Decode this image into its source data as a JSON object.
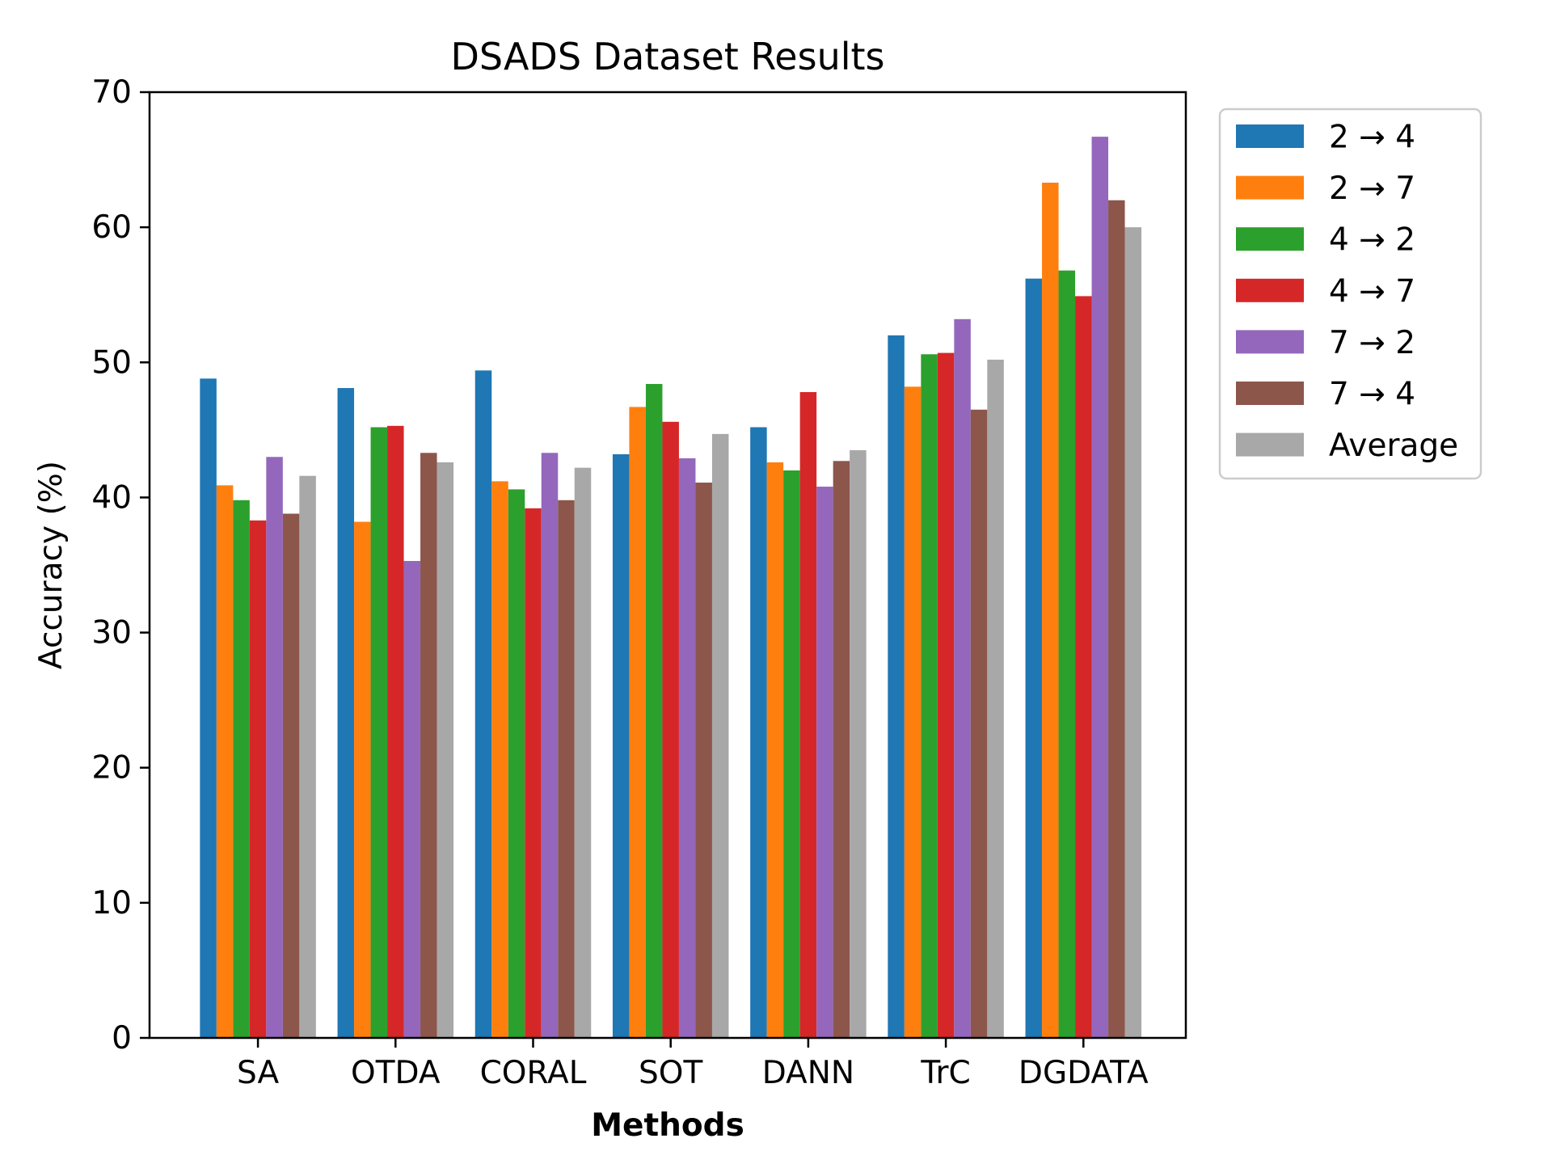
{
  "chart_data": {
    "type": "bar",
    "title": "DSADS Dataset Results",
    "xlabel": "Methods",
    "ylabel": "Accuracy (%)",
    "ylim": [
      0,
      70
    ],
    "yticks": [
      0,
      10,
      20,
      30,
      40,
      50,
      60,
      70
    ],
    "grid": false,
    "legend_position": "outside-top-right",
    "categories": [
      "SA",
      "OTDA",
      "CORAL",
      "SOT",
      "DANN",
      "TrC",
      "DGDATA"
    ],
    "series": [
      {
        "name": "2 → 4",
        "color": "#1f77b4",
        "values": [
          48.8,
          48.1,
          49.4,
          43.2,
          45.2,
          52.0,
          56.2
        ]
      },
      {
        "name": "2 → 7",
        "color": "#ff7f0e",
        "values": [
          40.9,
          38.2,
          41.2,
          46.7,
          42.6,
          48.2,
          63.3
        ]
      },
      {
        "name": "4 → 2",
        "color": "#2ca02c",
        "values": [
          39.8,
          45.2,
          40.6,
          48.4,
          42.0,
          50.6,
          56.8
        ]
      },
      {
        "name": "4 → 7",
        "color": "#d62728",
        "values": [
          38.3,
          45.3,
          39.2,
          45.6,
          47.8,
          50.7,
          54.9
        ]
      },
      {
        "name": "7 → 2",
        "color": "#9467bd",
        "values": [
          43.0,
          35.3,
          43.3,
          42.9,
          40.8,
          53.2,
          66.7
        ]
      },
      {
        "name": "7 → 4",
        "color": "#8c564b",
        "values": [
          38.8,
          43.3,
          39.8,
          41.1,
          42.7,
          46.5,
          62.0
        ]
      },
      {
        "name": "Average",
        "color": "#a8a8a8",
        "values": [
          41.6,
          42.6,
          42.2,
          44.7,
          43.5,
          50.2,
          60.0
        ]
      }
    ]
  }
}
